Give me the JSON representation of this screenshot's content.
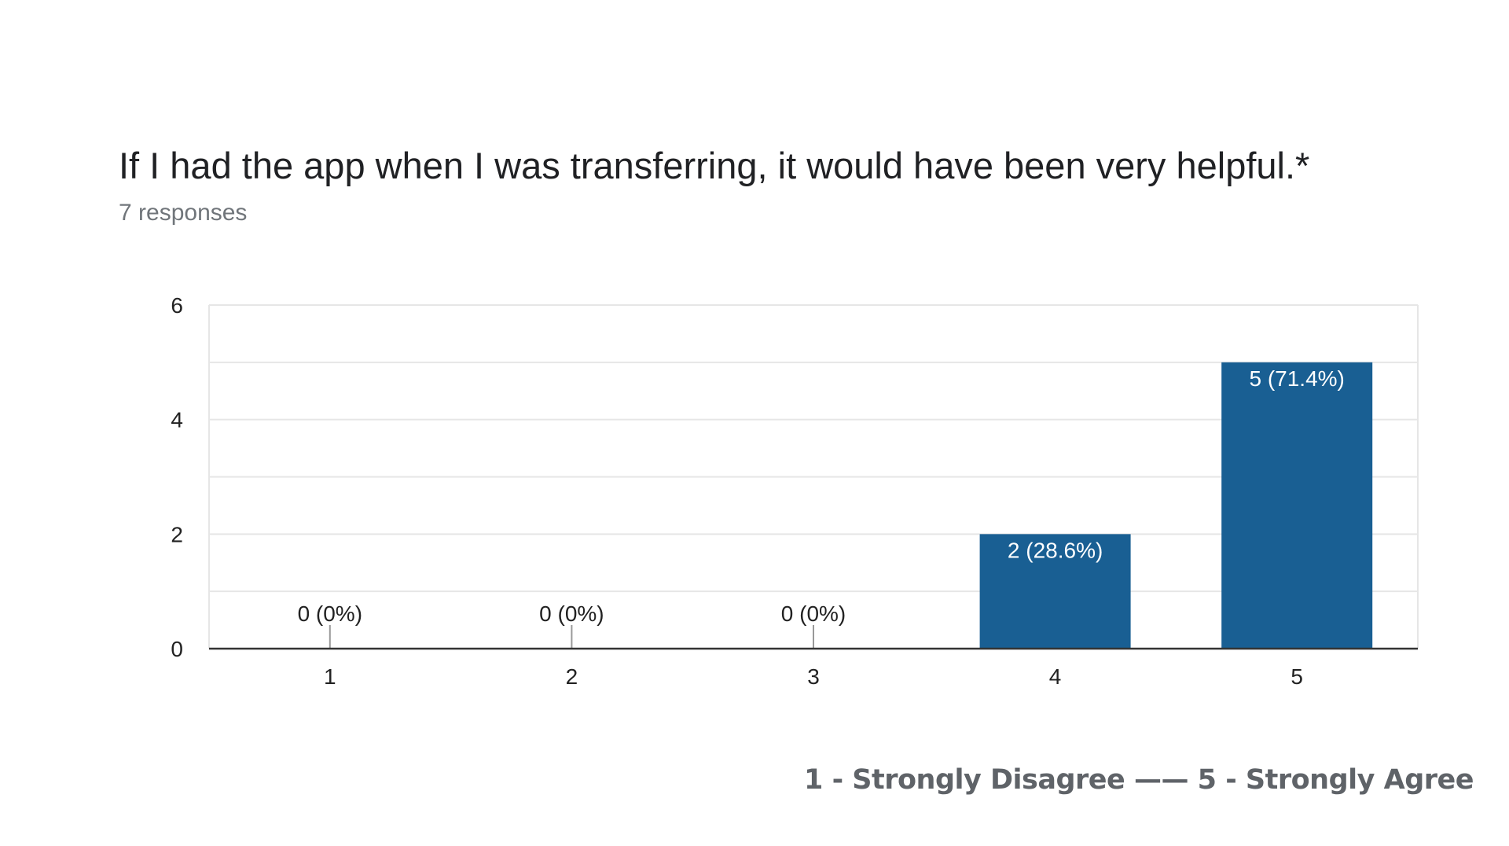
{
  "question": {
    "title": "If I had the app when I was transferring, it would have been very helpful.*",
    "responses": "7 responses"
  },
  "scale_legend": "1 - Strongly Disagree  ——  5 - Strongly Agree",
  "colors": {
    "bar": "#195f93",
    "gridline": "#e6e6e6",
    "axis": "#333333",
    "tick_text": "#222222",
    "bar_label_inside": "#ffffff",
    "bar_label_outside": "#222222"
  },
  "chart_data": {
    "type": "bar",
    "categories": [
      "1",
      "2",
      "3",
      "4",
      "5"
    ],
    "values": [
      0,
      0,
      0,
      2,
      5
    ],
    "data_labels": [
      "0 (0%)",
      "0 (0%)",
      "0 (0%)",
      "2 (28.6%)",
      "5 (71.4%)"
    ],
    "ylim": [
      0,
      6
    ],
    "yticks": [
      "0",
      "2",
      "4",
      "6"
    ],
    "grid": true,
    "xlabel": "",
    "ylabel": ""
  }
}
